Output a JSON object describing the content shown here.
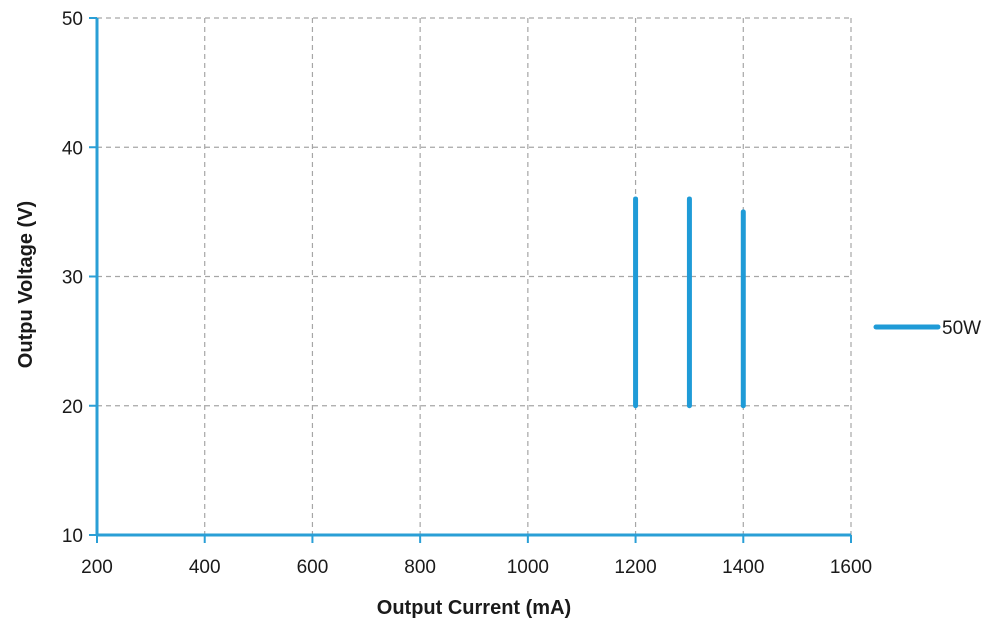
{
  "chart_data": {
    "type": "line",
    "xlabel": "Output Current (mA)",
    "ylabel": "Outpu Voltage (V)",
    "xlim": [
      200,
      1600
    ],
    "ylim": [
      10,
      50
    ],
    "xticks": [
      200,
      400,
      600,
      800,
      1000,
      1200,
      1400,
      1600
    ],
    "yticks": [
      10,
      20,
      30,
      40,
      50
    ],
    "grid": true,
    "legend_position": "right",
    "series": [
      {
        "name": "50W",
        "color": "#1f9bd7",
        "segments": [
          [
            {
              "x": 1200,
              "y": 20
            },
            {
              "x": 1200,
              "y": 36
            }
          ],
          [
            {
              "x": 1300,
              "y": 20
            },
            {
              "x": 1300,
              "y": 36
            }
          ],
          [
            {
              "x": 1400,
              "y": 20
            },
            {
              "x": 1400,
              "y": 35
            }
          ]
        ]
      }
    ],
    "axis_color": "#2a9fd6",
    "grid_color": "#a6a6a6"
  }
}
